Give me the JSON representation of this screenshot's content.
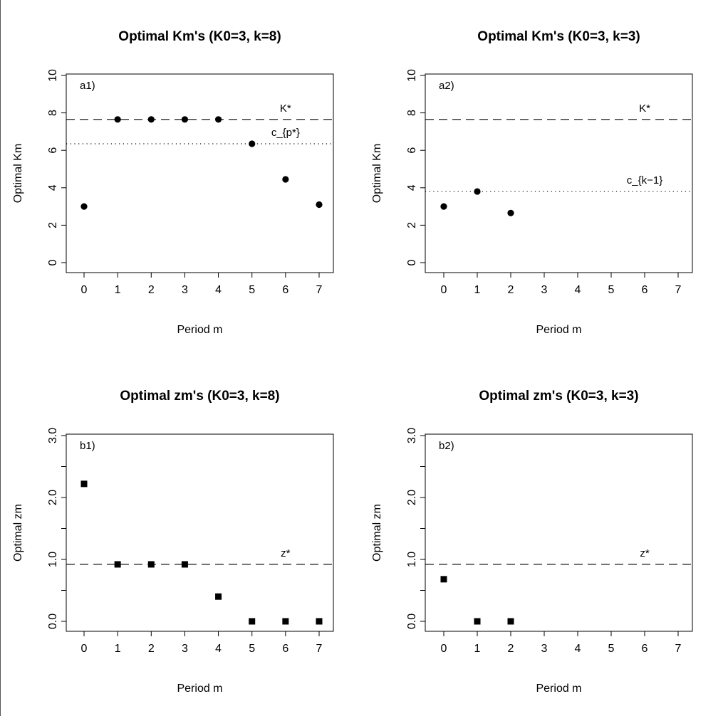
{
  "chart_data": [
    {
      "type": "scatter",
      "panel": "a1",
      "title": "Optimal Km's (K0=3, k=8)",
      "xlabel": "Period m",
      "ylabel": "Optimal Km",
      "panel_label": "a1)",
      "xlim": [
        0,
        7
      ],
      "ylim": [
        0,
        10
      ],
      "xticks": [
        0,
        1,
        2,
        3,
        4,
        5,
        6,
        7
      ],
      "yticks": [
        0,
        2,
        4,
        6,
        8,
        10
      ],
      "marker": "circle",
      "x": [
        0,
        1,
        2,
        3,
        4,
        5,
        6,
        7
      ],
      "y": [
        3.0,
        7.65,
        7.65,
        7.65,
        7.65,
        6.35,
        4.45,
        3.1
      ],
      "hlines": [
        {
          "y": 7.65,
          "style": "dashed",
          "label": "K*",
          "label_x": 6.0
        },
        {
          "y": 6.35,
          "style": "dotted",
          "label": "c_{p*}",
          "label_x": 6.0
        }
      ]
    },
    {
      "type": "scatter",
      "panel": "a2",
      "title": "Optimal Km's (K0=3, k=3)",
      "xlabel": "Period m",
      "ylabel": "Optimal Km",
      "panel_label": "a2)",
      "xlim": [
        0,
        7
      ],
      "ylim": [
        0,
        10
      ],
      "xticks": [
        0,
        1,
        2,
        3,
        4,
        5,
        6,
        7
      ],
      "yticks": [
        0,
        2,
        4,
        6,
        8,
        10
      ],
      "marker": "circle",
      "x": [
        0,
        1,
        2
      ],
      "y": [
        3.0,
        3.8,
        2.65
      ],
      "hlines": [
        {
          "y": 7.65,
          "style": "dashed",
          "label": "K*",
          "label_x": 6.0
        },
        {
          "y": 3.8,
          "style": "dotted",
          "label": "c_{k−1}",
          "label_x": 6.0
        }
      ]
    },
    {
      "type": "scatter",
      "panel": "b1",
      "title": "Optimal zm's (K0=3, k=8)",
      "xlabel": "Period m",
      "ylabel": "Optimal zm",
      "panel_label": "b1)",
      "xlim": [
        0,
        7
      ],
      "ylim": [
        0,
        3
      ],
      "xticks": [
        0,
        1,
        2,
        3,
        4,
        5,
        6,
        7
      ],
      "yticks": [
        0,
        1,
        2,
        3
      ],
      "ytick_labels": [
        "0.0",
        "1.0",
        "2.0",
        "3.0"
      ],
      "yminor": [
        0.5,
        1.5,
        2.5
      ],
      "marker": "square",
      "x": [
        0,
        1,
        2,
        3,
        4,
        5,
        6,
        7
      ],
      "y": [
        2.22,
        0.92,
        0.92,
        0.92,
        0.4,
        0.0,
        0.0,
        0.0
      ],
      "hlines": [
        {
          "y": 0.92,
          "style": "dashed",
          "label": "z*",
          "label_x": 6.0
        }
      ]
    },
    {
      "type": "scatter",
      "panel": "b2",
      "title": "Optimal zm's (K0=3, k=3)",
      "xlabel": "Period m",
      "ylabel": "Optimal zm",
      "panel_label": "b2)",
      "xlim": [
        0,
        7
      ],
      "ylim": [
        0,
        3
      ],
      "xticks": [
        0,
        1,
        2,
        3,
        4,
        5,
        6,
        7
      ],
      "yticks": [
        0,
        1,
        2,
        3
      ],
      "ytick_labels": [
        "0.0",
        "1.0",
        "2.0",
        "3.0"
      ],
      "yminor": [
        0.5,
        1.5,
        2.5
      ],
      "marker": "square",
      "x": [
        0,
        1,
        2
      ],
      "y": [
        0.68,
        0.0,
        0.0
      ],
      "hlines": [
        {
          "y": 0.92,
          "style": "dashed",
          "label": "z*",
          "label_x": 6.0
        }
      ]
    }
  ]
}
